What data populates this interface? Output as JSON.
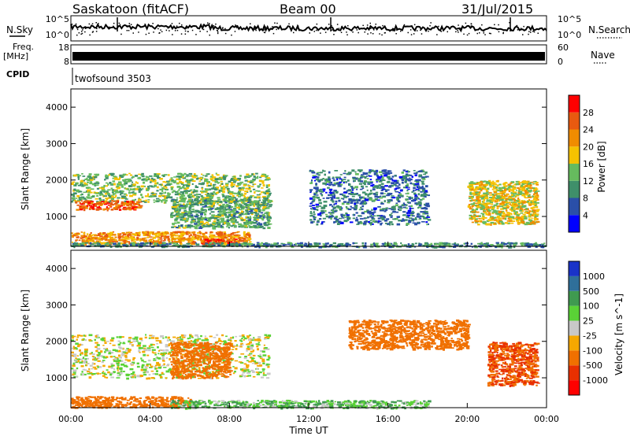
{
  "header": {
    "station": "Saskatoon (fitACF)",
    "beam": "Beam 00",
    "date": "31/Jul/2015"
  },
  "noise_panel": {
    "left_label": "N.Sky",
    "right_label": "N.Search",
    "left_ticks": [
      "10^5",
      "10^0"
    ],
    "right_ticks": [
      "10^5",
      "10^0"
    ]
  },
  "freq_panel": {
    "left_label_1": "Freq.",
    "left_label_2": "[MHz]",
    "right_label": "Nave",
    "left_ticks": [
      "18",
      "8"
    ],
    "right_ticks": [
      "60",
      "0"
    ]
  },
  "cpid_panel": {
    "label": "CPID",
    "program": "twofsound 3503"
  },
  "power_panel": {
    "ylabel": "Slant Range [km]",
    "yticks": [
      "1000",
      "2000",
      "3000",
      "4000"
    ],
    "colorbar_label": "Power [dB]",
    "colorbar_ticks": [
      "4",
      "8",
      "12",
      "16",
      "20",
      "24",
      "28"
    ],
    "colors": [
      "#0000ff",
      "#2a4fa8",
      "#3f8f6a",
      "#66bb5e",
      "#f5c200",
      "#f08c00",
      "#e85a10",
      "#ff0000"
    ]
  },
  "velocity_panel": {
    "ylabel": "Slant Range [km]",
    "yticks": [
      "1000",
      "2000",
      "3000",
      "4000"
    ],
    "colorbar_label": "Velocity [m s^-1]",
    "colorbar_ticks": [
      "1000",
      "500",
      "100",
      "25",
      "-25",
      "-100",
      "-500",
      "-1000"
    ],
    "colors": [
      "#1a33c8",
      "#2f6f9a",
      "#3f9a50",
      "#5ad236",
      "#c8c8c8",
      "#f5a800",
      "#f07000",
      "#e83000",
      "#ff0000"
    ]
  },
  "time_axis": {
    "label": "Time UT",
    "ticks": [
      "00:00",
      "04:00",
      "08:00",
      "12:00",
      "16:00",
      "20:00",
      "00:00"
    ]
  },
  "chart_data": [
    {
      "type": "heatmap",
      "name": "Power [dB]",
      "x_range": [
        0,
        24
      ],
      "ylim": [
        180,
        4500
      ],
      "clim": [
        0,
        32
      ],
      "regions": [
        {
          "x": [
            0,
            10
          ],
          "y": [
            1400,
            2200
          ],
          "value": 14
        },
        {
          "x": [
            0.2,
            3.5
          ],
          "y": [
            1200,
            1450
          ],
          "value": 26
        },
        {
          "x": [
            0,
            9
          ],
          "y": [
            250,
            600
          ],
          "value": 22
        },
        {
          "x": [
            6.5,
            8.5
          ],
          "y": [
            200,
            400
          ],
          "value": 28
        },
        {
          "x": [
            5,
            10
          ],
          "y": [
            700,
            1500
          ],
          "value": 12
        },
        {
          "x": [
            12,
            18
          ],
          "y": [
            800,
            2300
          ],
          "value": 8
        },
        {
          "x": [
            20,
            23.5
          ],
          "y": [
            800,
            2000
          ],
          "value": 18
        },
        {
          "x": [
            0,
            24
          ],
          "y": [
            180,
            300
          ],
          "value": 10
        }
      ]
    },
    {
      "type": "heatmap",
      "name": "Velocity [m s^-1]",
      "x_range": [
        0,
        24
      ],
      "ylim": [
        180,
        4500
      ],
      "clim": [
        -1000,
        1000
      ],
      "regions": [
        {
          "x": [
            0,
            10
          ],
          "y": [
            1000,
            2200
          ],
          "value": 0
        },
        {
          "x": [
            5,
            8
          ],
          "y": [
            1000,
            2000
          ],
          "value": -300
        },
        {
          "x": [
            0,
            6
          ],
          "y": [
            200,
            500
          ],
          "value": -200
        },
        {
          "x": [
            5,
            18
          ],
          "y": [
            180,
            400
          ],
          "value": 80
        },
        {
          "x": [
            14,
            20
          ],
          "y": [
            1800,
            2600
          ],
          "value": -300
        },
        {
          "x": [
            21,
            23.5
          ],
          "y": [
            800,
            2000
          ],
          "value": -500
        }
      ]
    }
  ]
}
